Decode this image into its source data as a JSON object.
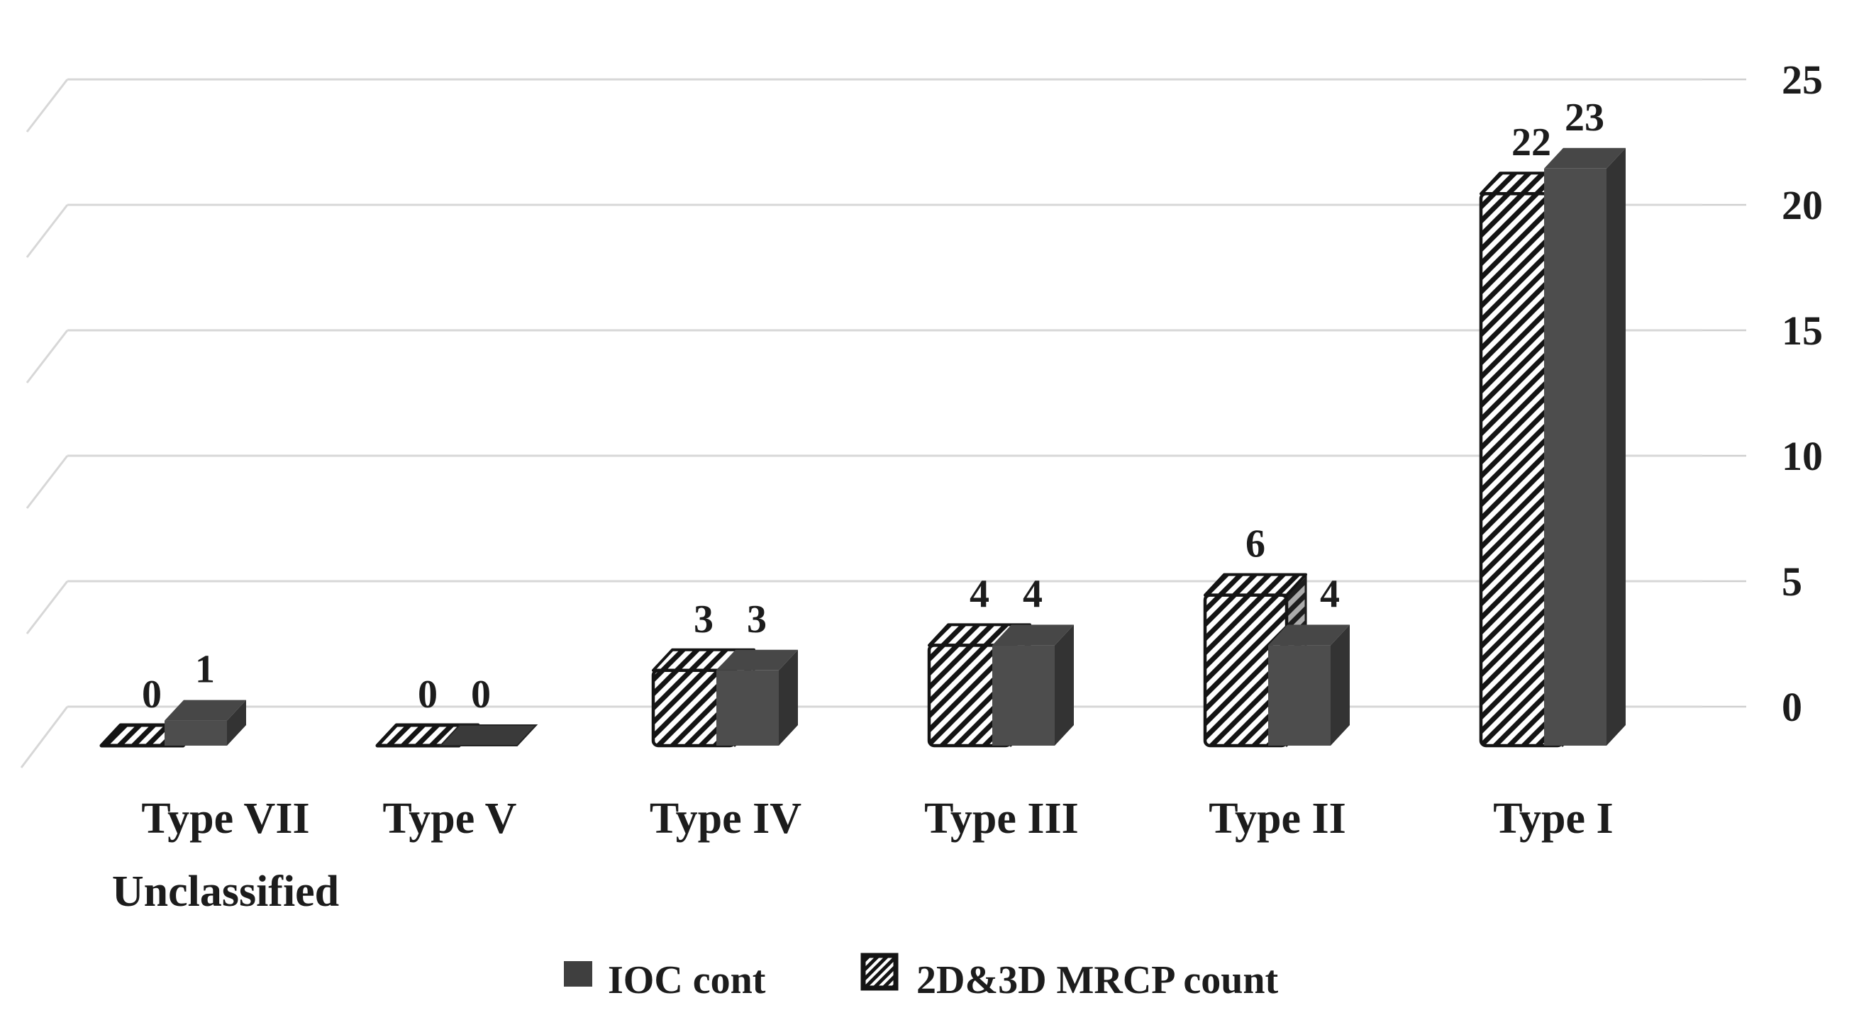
{
  "chart_data": {
    "type": "bar",
    "projection": "3d-clustered",
    "title": "",
    "categories": [
      "Type VII\nUnclassified",
      "Type V",
      "Type IV",
      "Type III",
      "Type II",
      "Type I"
    ],
    "series": [
      {
        "name": "IOC  cont",
        "style": "solid-dark",
        "values": [
          1,
          0,
          3,
          4,
          4,
          23
        ]
      },
      {
        "name": "2D&3D MRCP count",
        "style": "diagonal-hatch",
        "values": [
          0,
          0,
          3,
          4,
          6,
          22
        ]
      }
    ],
    "value_labels": {
      "solid": [
        "1",
        "0",
        "3",
        "4",
        "4",
        "23"
      ],
      "hatched": [
        "0",
        "0",
        "3",
        "4",
        "6",
        "22"
      ]
    },
    "ylim": [
      0,
      25
    ],
    "yticks": [
      0,
      5,
      10,
      15,
      20,
      25
    ],
    "ytick_labels": [
      "0",
      "5",
      "10",
      "15",
      "20",
      "25"
    ],
    "y_axis_side": "right",
    "grid": true,
    "legend_position": "bottom-center",
    "colors": {
      "solid_front": "#4d4d4d",
      "solid_top": "#474747",
      "solid_side": "#333333",
      "solid_flat": "#3a3a3a",
      "hatch_stroke": "#141414",
      "outline": "#141414",
      "gridline": "#d7d7d7",
      "tick": "#cfcfcf",
      "text": "#1c1c1c",
      "background": "#ffffff"
    }
  }
}
